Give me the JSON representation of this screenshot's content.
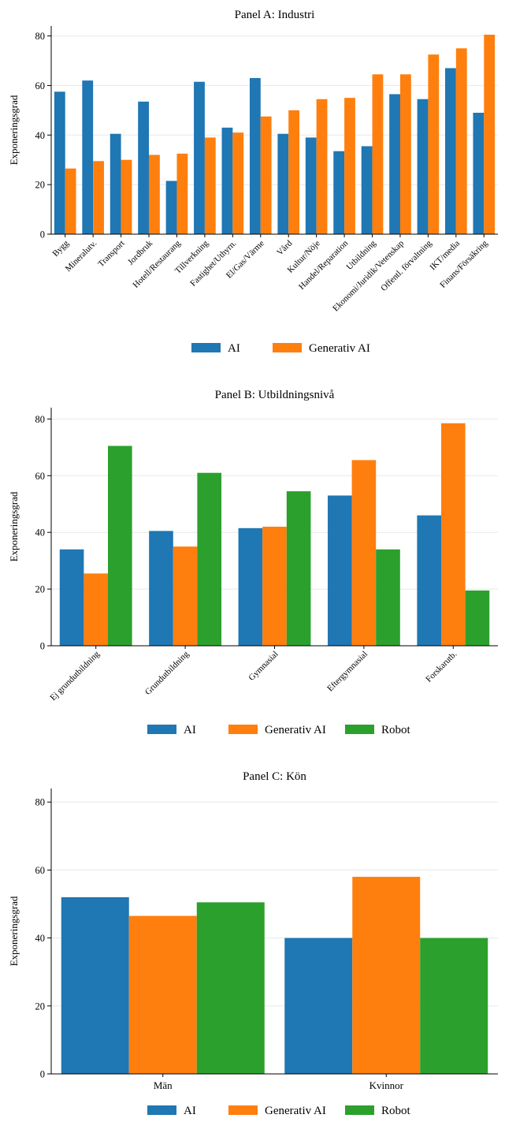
{
  "colors": {
    "AI": "#1f77b4",
    "Generativ AI": "#ff7f0e",
    "Robot": "#2ca02c",
    "grid": "#e8e8e8"
  },
  "chart_data": [
    {
      "type": "bar",
      "title": "Panel A: Industri",
      "xlabel": "",
      "ylabel": "Exponeringsgrad",
      "ylim": [
        0,
        84
      ],
      "yticks": [
        0,
        20,
        40,
        60,
        80
      ],
      "grid": "horizontal",
      "legend": "bottom",
      "categories": [
        "Bygg",
        "Mineralutv.",
        "Transport",
        "Jordbruk",
        "Hotell/Restaurang",
        "Tillverkning",
        "Fastighet/Uthyrn.",
        "El/Gas/Värme",
        "Vård",
        "Kultur/Nöje",
        "Handel/Reparation",
        "Utbildning",
        "Ekonomi/Juridik/Vetenskap",
        "Offentl. förvaltning",
        "IKT/media",
        "Finans/Försäkring"
      ],
      "series": [
        {
          "name": "AI",
          "values": [
            57.5,
            62,
            40.5,
            53.5,
            21.5,
            61.5,
            43,
            63,
            40.5,
            39,
            33.5,
            35.5,
            56.5,
            54.5,
            67,
            49
          ]
        },
        {
          "name": "Generativ AI",
          "values": [
            26.5,
            29.5,
            30,
            32,
            32.5,
            39,
            41,
            47.5,
            50,
            54.5,
            55,
            64.5,
            64.5,
            72.5,
            75,
            80.5
          ]
        }
      ]
    },
    {
      "type": "bar",
      "title": "Panel B: Utbildningsnivå",
      "xlabel": "",
      "ylabel": "Exponeringsgrad",
      "ylim": [
        0,
        84
      ],
      "yticks": [
        0,
        20,
        40,
        60,
        80
      ],
      "grid": "horizontal",
      "legend": "bottom",
      "categories": [
        "Ej grundutbildning",
        "Grundutbildning",
        "Gymnasial",
        "Eftergymnasial",
        "Forskarutb."
      ],
      "series": [
        {
          "name": "AI",
          "values": [
            34,
            40.5,
            41.5,
            53,
            46
          ]
        },
        {
          "name": "Generativ AI",
          "values": [
            25.5,
            35,
            42,
            65.5,
            78.5
          ]
        },
        {
          "name": "Robot",
          "values": [
            70.5,
            61,
            54.5,
            34,
            19.5
          ]
        }
      ]
    },
    {
      "type": "bar",
      "title": "Panel C: Kön",
      "xlabel": "",
      "ylabel": "Exponeringsgrad",
      "ylim": [
        0,
        84
      ],
      "yticks": [
        0,
        20,
        40,
        60,
        80
      ],
      "grid": "horizontal",
      "legend": "bottom",
      "categories": [
        "Män",
        "Kvinnor"
      ],
      "series": [
        {
          "name": "AI",
          "values": [
            52,
            40
          ]
        },
        {
          "name": "Generativ AI",
          "values": [
            46.5,
            58
          ]
        },
        {
          "name": "Robot",
          "values": [
            50.5,
            40
          ]
        }
      ]
    }
  ]
}
